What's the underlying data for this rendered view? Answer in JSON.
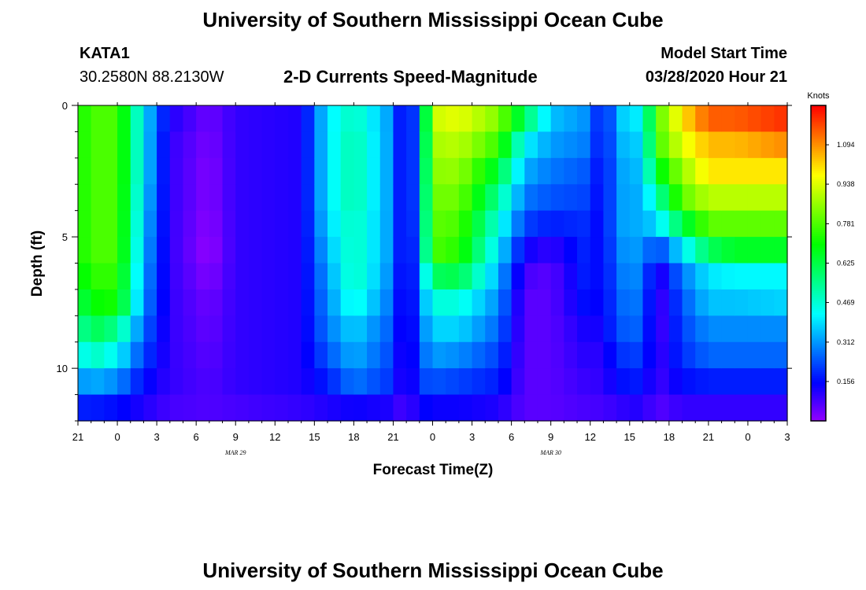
{
  "header": {
    "title": "University of Southern Mississippi Ocean Cube",
    "station_id": "KATA1",
    "coords": "30.2580N 88.2130W",
    "subtitle": "2-D Currents Speed-Magnitude",
    "start_label": "Model Start Time",
    "start_value": "03/28/2020 Hour 21"
  },
  "footer": {
    "title": "University of Southern Mississippi Ocean Cube"
  },
  "chart_data": {
    "type": "heatmap",
    "title": "2-D Currents Speed-Magnitude",
    "xlabel": "Forecast Time(Z)",
    "ylabel": "Depth (ft)",
    "x_tick_labels": [
      "21",
      "0",
      "3",
      "6",
      "9",
      "12",
      "15",
      "18",
      "21",
      "0",
      "3",
      "6",
      "9",
      "12",
      "15",
      "18",
      "21",
      "0",
      "3"
    ],
    "x_date_labels": [
      "MAR 29",
      "MAR 30"
    ],
    "x_range_hours": [
      0,
      54
    ],
    "y_range_ft": [
      0,
      12
    ],
    "y_ticks": [
      0,
      5,
      10
    ],
    "colorbar": {
      "unit": "Knots",
      "range": [
        0,
        1.25
      ],
      "tick_values": [
        0.156,
        0.312,
        0.469,
        0.625,
        0.781,
        0.938,
        1.094
      ],
      "tick_labels": [
        "0.156",
        "0.312",
        "0.469",
        "0.625",
        "0.781",
        "0.938",
        "1.094"
      ]
    },
    "depth_levels_ft": [
      0.5,
      1.5,
      2.5,
      3.5,
      4.5,
      5.5,
      6.5,
      7.5,
      8.5,
      9.5,
      10.5,
      11.5
    ],
    "column_profiles": [
      {
        "hour": 0,
        "values": [
          0.7,
          0.7,
          0.7,
          0.7,
          0.7,
          0.7,
          0.66,
          0.6,
          0.5,
          0.4,
          0.3,
          0.18
        ]
      },
      {
        "hour": 1,
        "values": [
          0.78,
          0.78,
          0.78,
          0.78,
          0.78,
          0.78,
          0.75,
          0.7,
          0.62,
          0.5,
          0.34,
          0.18
        ]
      },
      {
        "hour": 3,
        "values": [
          0.78,
          0.78,
          0.78,
          0.78,
          0.78,
          0.78,
          0.75,
          0.72,
          0.55,
          0.42,
          0.3,
          0.16
        ]
      },
      {
        "hour": 5,
        "values": [
          0.4,
          0.4,
          0.4,
          0.38,
          0.36,
          0.34,
          0.32,
          0.3,
          0.26,
          0.22,
          0.16,
          0.12
        ]
      },
      {
        "hour": 7,
        "values": [
          0.12,
          0.1,
          0.1,
          0.1,
          0.1,
          0.1,
          0.1,
          0.1,
          0.1,
          0.1,
          0.1,
          0.08
        ]
      },
      {
        "hour": 10,
        "values": [
          0.04,
          0.03,
          0.02,
          0.02,
          0.01,
          0.0,
          0.02,
          0.04,
          0.05,
          0.06,
          0.07,
          0.07
        ]
      },
      {
        "hour": 12,
        "values": [
          0.1,
          0.1,
          0.1,
          0.1,
          0.1,
          0.1,
          0.1,
          0.1,
          0.1,
          0.1,
          0.1,
          0.08
        ]
      },
      {
        "hour": 17,
        "values": [
          0.12,
          0.12,
          0.12,
          0.12,
          0.12,
          0.12,
          0.12,
          0.12,
          0.12,
          0.12,
          0.12,
          0.1
        ]
      },
      {
        "hour": 19,
        "values": [
          0.4,
          0.4,
          0.4,
          0.4,
          0.38,
          0.35,
          0.32,
          0.3,
          0.28,
          0.24,
          0.18,
          0.12
        ]
      },
      {
        "hour": 21,
        "values": [
          0.5,
          0.52,
          0.52,
          0.52,
          0.5,
          0.5,
          0.5,
          0.46,
          0.38,
          0.34,
          0.28,
          0.14
        ]
      },
      {
        "hour": 24,
        "values": [
          0.3,
          0.3,
          0.3,
          0.3,
          0.3,
          0.3,
          0.28,
          0.26,
          0.24,
          0.22,
          0.2,
          0.12
        ]
      },
      {
        "hour": 25,
        "values": [
          0.06,
          0.06,
          0.06,
          0.06,
          0.06,
          0.06,
          0.06,
          0.06,
          0.06,
          0.06,
          0.06,
          0.06
        ]
      },
      {
        "hour": 26,
        "values": [
          0.35,
          0.35,
          0.35,
          0.35,
          0.34,
          0.32,
          0.3,
          0.28,
          0.26,
          0.24,
          0.22,
          0.16
        ]
      },
      {
        "hour": 27,
        "values": [
          0.92,
          0.88,
          0.85,
          0.82,
          0.8,
          0.78,
          0.6,
          0.46,
          0.38,
          0.32,
          0.24,
          0.14
        ]
      },
      {
        "hour": 29,
        "values": [
          0.95,
          0.9,
          0.86,
          0.82,
          0.78,
          0.74,
          0.62,
          0.46,
          0.38,
          0.3,
          0.22,
          0.14
        ]
      },
      {
        "hour": 32,
        "values": [
          0.84,
          0.76,
          0.64,
          0.54,
          0.46,
          0.4,
          0.34,
          0.3,
          0.26,
          0.22,
          0.18,
          0.12
        ]
      },
      {
        "hour": 34,
        "values": [
          0.6,
          0.42,
          0.34,
          0.28,
          0.22,
          0.14,
          0.08,
          0.06,
          0.06,
          0.06,
          0.06,
          0.06
        ]
      },
      {
        "hour": 36,
        "values": [
          0.36,
          0.32,
          0.28,
          0.24,
          0.18,
          0.1,
          0.06,
          0.06,
          0.06,
          0.06,
          0.06,
          0.06
        ]
      },
      {
        "hour": 39,
        "values": [
          0.3,
          0.28,
          0.24,
          0.22,
          0.2,
          0.2,
          0.2,
          0.18,
          0.14,
          0.12,
          0.1,
          0.08
        ]
      },
      {
        "hour": 40,
        "values": [
          0.12,
          0.12,
          0.12,
          0.12,
          0.12,
          0.12,
          0.12,
          0.12,
          0.12,
          0.1,
          0.1,
          0.08
        ]
      },
      {
        "hour": 41,
        "values": [
          0.36,
          0.34,
          0.32,
          0.32,
          0.32,
          0.3,
          0.28,
          0.26,
          0.24,
          0.2,
          0.16,
          0.1
        ]
      },
      {
        "hour": 43,
        "values": [
          0.42,
          0.38,
          0.36,
          0.34,
          0.34,
          0.32,
          0.3,
          0.28,
          0.26,
          0.22,
          0.18,
          0.12
        ]
      },
      {
        "hour": 44,
        "values": [
          0.78,
          0.76,
          0.66,
          0.5,
          0.38,
          0.2,
          0.08,
          0.06,
          0.06,
          0.08,
          0.08,
          0.06
        ]
      },
      {
        "hour": 46,
        "values": [
          1.0,
          0.94,
          0.86,
          0.8,
          0.62,
          0.4,
          0.28,
          0.24,
          0.22,
          0.2,
          0.16,
          0.1
        ]
      },
      {
        "hour": 48,
        "values": [
          1.15,
          1.05,
          1.0,
          0.9,
          0.8,
          0.6,
          0.4,
          0.36,
          0.3,
          0.26,
          0.18,
          0.1
        ]
      },
      {
        "hour": 50,
        "values": [
          1.15,
          1.05,
          1.0,
          0.9,
          0.8,
          0.66,
          0.42,
          0.36,
          0.3,
          0.26,
          0.18,
          0.1
        ]
      },
      {
        "hour": 54,
        "values": [
          1.2,
          1.1,
          1.0,
          0.9,
          0.8,
          0.66,
          0.42,
          0.38,
          0.3,
          0.26,
          0.18,
          0.1
        ]
      }
    ]
  }
}
